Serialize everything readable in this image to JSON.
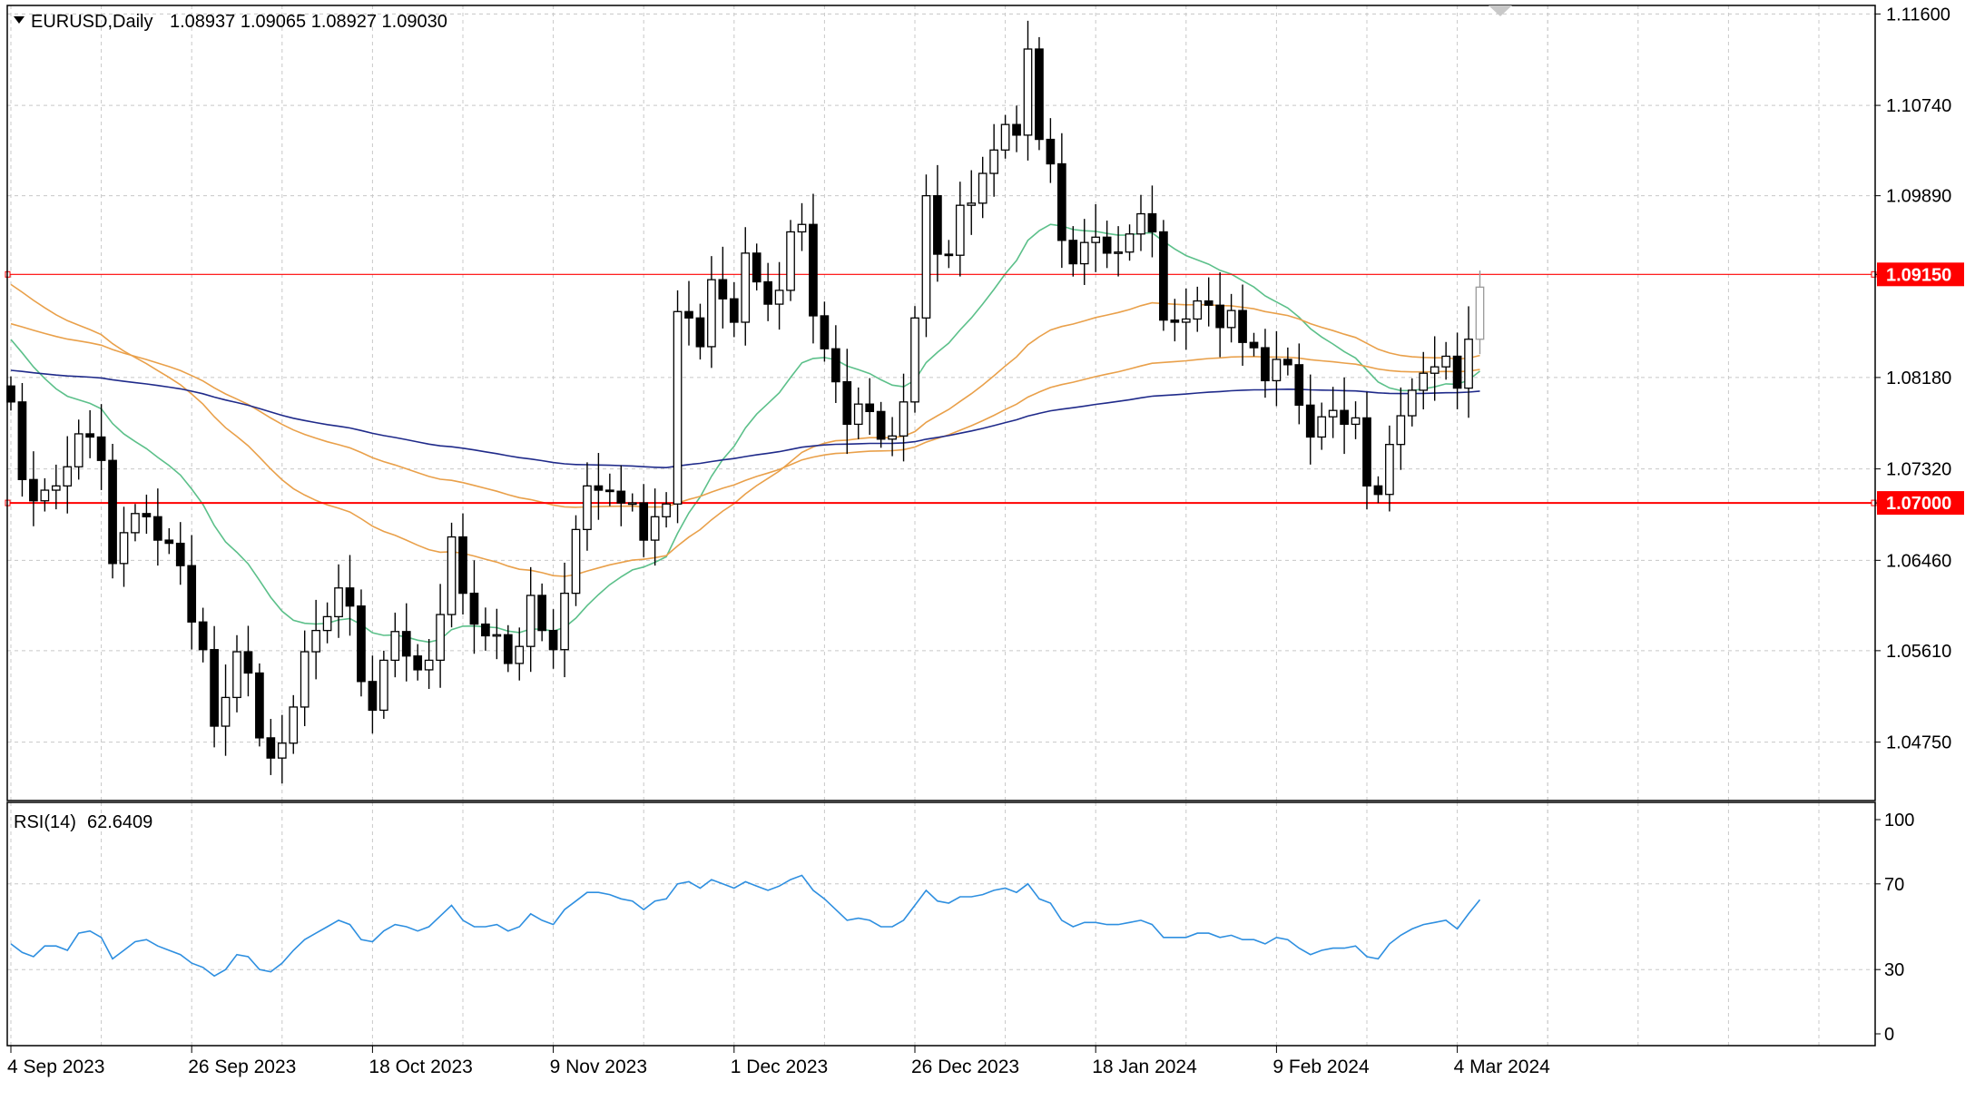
{
  "header": {
    "symbol_text": "EURUSD,Daily",
    "ohlc_text": "1.08937 1.09065 1.08927 1.09030"
  },
  "rsi_header": {
    "label": "RSI(14)",
    "value": "62.6409"
  },
  "colors": {
    "background": "#ffffff",
    "grid": "#c8c8c8",
    "frame": "#000000",
    "candle": "#000000",
    "current_candle": "#9a9a9a",
    "ma_green": "#5cc08a",
    "ma_orange": "#e9a04a",
    "ma_navy": "#1f2a8a",
    "level_line": "#ff0000",
    "rsi_line": "#2e8fe0"
  },
  "chart_data": [
    {
      "type": "candlestick",
      "title": "EURUSD,Daily",
      "y_ticks": [
        "1.11600",
        "1.10740",
        "1.09890",
        "1.09150",
        "1.08180",
        "1.07320",
        "1.07000",
        "1.06460",
        "1.05610",
        "1.04750"
      ],
      "ylim": [
        1.042,
        1.1168
      ],
      "x_tick_labels": [
        "4 Sep 2023",
        "26 Sep 2023",
        "18 Oct 2023",
        "9 Nov 2023",
        "1 Dec 2023",
        "26 Dec 2023",
        "18 Jan 2024",
        "9 Feb 2024",
        "4 Mar 2024"
      ],
      "x_tick_bar_index": [
        0,
        16,
        32,
        48,
        64,
        80,
        96,
        112,
        128
      ],
      "bar_count": 131,
      "closes": [
        1.0795,
        1.0722,
        1.0702,
        1.0712,
        1.0716,
        1.0734,
        1.0765,
        1.0762,
        1.074,
        1.0643,
        1.0672,
        1.069,
        1.0687,
        1.0665,
        1.0662,
        1.0641,
        1.0588,
        1.0562,
        1.049,
        1.0517,
        1.056,
        1.054,
        1.0479,
        1.046,
        1.0474,
        1.0508,
        1.056,
        1.058,
        1.0593,
        1.062,
        1.0603,
        1.0532,
        1.0505,
        1.0552,
        1.0579,
        1.0556,
        1.0543,
        1.0552,
        1.0595,
        1.0668,
        1.0615,
        1.0586,
        1.0575,
        1.0576,
        1.0549,
        1.0565,
        1.0613,
        1.058,
        1.0562,
        1.0615,
        1.0675,
        1.0716,
        1.0712,
        1.0711,
        1.07,
        1.07,
        1.0665,
        1.0687,
        1.0699,
        1.088,
        1.0874,
        1.0847,
        1.091,
        1.0892,
        1.087,
        1.0935,
        1.0908,
        1.0887,
        1.09,
        1.0955,
        1.0962,
        1.0876,
        1.0845,
        1.0814,
        1.0774,
        1.0793,
        1.0786,
        1.076,
        1.0763,
        1.0795,
        1.0874,
        1.0989,
        1.0934,
        1.0933,
        1.098,
        1.0982,
        1.101,
        1.1032,
        1.1056,
        1.1046,
        1.1127,
        1.1042,
        1.1019,
        1.0947,
        1.0925,
        1.0945,
        1.095,
        1.0935,
        1.0936,
        1.0953,
        1.0972,
        1.0955,
        1.0872,
        1.087,
        1.0873,
        1.089,
        1.0886,
        1.0865,
        1.0881,
        1.0851,
        1.0846,
        1.0815,
        1.0835,
        1.083,
        1.0792,
        1.0762,
        1.0781,
        1.0787,
        1.0774,
        1.078,
        1.0716,
        1.0708,
        1.0755,
        1.0782,
        1.0806,
        1.0822,
        1.0828,
        1.0838,
        1.0808,
        1.0854,
        1.0903
      ],
      "series": [
        {
          "name": "RSI(14)",
          "type": "line",
          "ylim": [
            0,
            100
          ],
          "y_ticks": [
            "100",
            "70",
            "30",
            "0"
          ],
          "values": [
            42,
            38,
            36,
            41,
            41,
            39,
            47,
            48,
            45,
            35,
            39,
            43,
            44,
            41,
            39,
            37,
            33,
            31,
            27,
            30,
            37,
            36,
            30,
            29,
            33,
            39,
            44,
            47,
            50,
            53,
            51,
            44,
            43,
            48,
            51,
            50,
            48,
            50,
            55,
            60,
            53,
            50,
            50,
            51,
            48,
            50,
            56,
            53,
            51,
            58,
            62,
            66,
            66,
            65,
            63,
            62,
            58,
            62,
            63,
            70,
            71,
            68,
            72,
            70,
            68,
            71,
            69,
            67,
            69,
            72,
            74,
            67,
            63,
            58,
            53,
            54,
            53,
            50,
            50,
            53,
            60,
            67,
            62,
            61,
            64,
            64,
            65,
            67,
            68,
            66,
            70,
            63,
            61,
            53,
            50,
            52,
            52,
            51,
            51,
            52,
            53,
            51,
            45,
            45,
            45,
            47,
            47,
            45,
            46,
            44,
            44,
            42,
            45,
            44,
            40,
            37,
            39,
            40,
            40,
            41,
            36,
            35,
            42,
            46,
            49,
            51,
            52,
            53,
            49,
            56,
            62.6409
          ]
        }
      ],
      "horizontal_levels": [
        1.0915,
        1.07
      ]
    }
  ]
}
